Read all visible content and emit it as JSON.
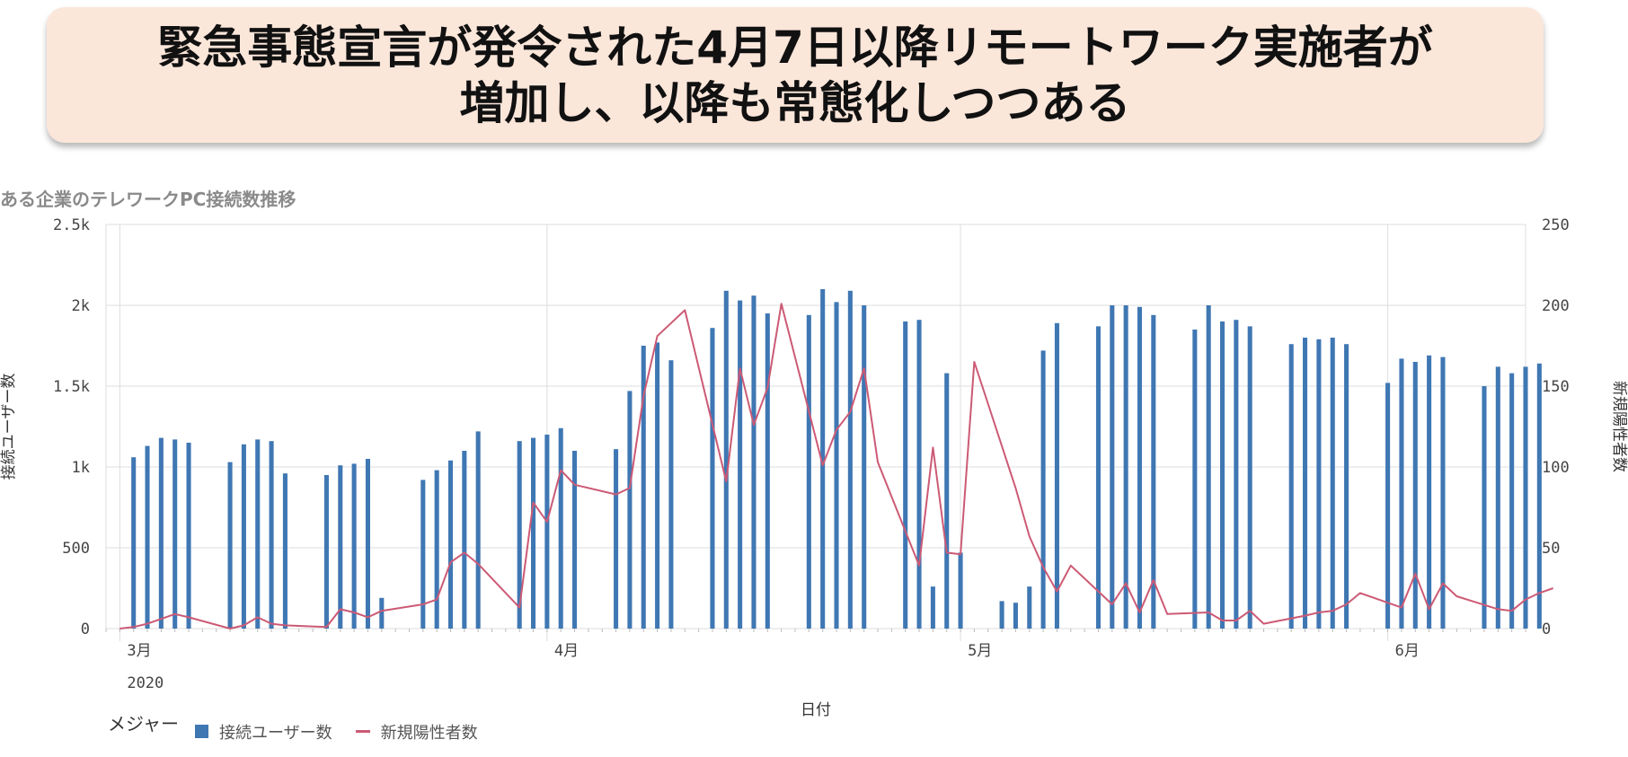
{
  "banner": {
    "line1": "緊急事態宣言が発令された4月7日以降リモートワーク実施者が",
    "line2": "増加し、以降も常態化しつつある"
  },
  "legend": {
    "title": "メジャー",
    "bar_label": "接続ユーザー数",
    "line_label": "新規陽性者数"
  },
  "colors": {
    "bar": "#3f77b3",
    "line": "#cc5a75",
    "grid": "#dddddd"
  },
  "chart_data": {
    "type": "bar+line",
    "title": "ある企業のテレワークPC接続数推移",
    "xlabel": "日付",
    "ylabel_left": "接続ユーザー数",
    "ylabel_right": "新規陽性者数",
    "ylim_left": [
      0,
      2500
    ],
    "ylim_right": [
      0,
      250
    ],
    "yticks_left": [
      "0",
      "500",
      "1k",
      "1.5k",
      "2k",
      "2.5k"
    ],
    "yticks_right": [
      "0",
      "50",
      "100",
      "150",
      "200",
      "250"
    ],
    "x_range": [
      "2020-02-29",
      "2020-06-11"
    ],
    "x_ticks": [
      {
        "date": "2020-03-01",
        "label": "3月",
        "sub": "2020"
      },
      {
        "date": "2020-04-01",
        "label": "4月",
        "sub": ""
      },
      {
        "date": "2020-05-01",
        "label": "5月",
        "sub": ""
      },
      {
        "date": "2020-06-01",
        "label": "6月",
        "sub": ""
      }
    ],
    "grid": true,
    "legend_position": "bottom-left",
    "series": [
      {
        "name": "接続ユーザー数",
        "type": "bar",
        "axis": "left",
        "points": [
          [
            "2020-03-02",
            1060
          ],
          [
            "2020-03-03",
            1130
          ],
          [
            "2020-03-04",
            1180
          ],
          [
            "2020-03-05",
            1170
          ],
          [
            "2020-03-06",
            1150
          ],
          [
            "2020-03-09",
            1030
          ],
          [
            "2020-03-10",
            1140
          ],
          [
            "2020-03-11",
            1170
          ],
          [
            "2020-03-12",
            1160
          ],
          [
            "2020-03-13",
            960
          ],
          [
            "2020-03-16",
            950
          ],
          [
            "2020-03-17",
            1010
          ],
          [
            "2020-03-18",
            1020
          ],
          [
            "2020-03-19",
            1050
          ],
          [
            "2020-03-20",
            190
          ],
          [
            "2020-03-23",
            920
          ],
          [
            "2020-03-24",
            980
          ],
          [
            "2020-03-25",
            1040
          ],
          [
            "2020-03-26",
            1100
          ],
          [
            "2020-03-27",
            1220
          ],
          [
            "2020-03-30",
            1160
          ],
          [
            "2020-03-31",
            1180
          ],
          [
            "2020-04-01",
            1200
          ],
          [
            "2020-04-02",
            1240
          ],
          [
            "2020-04-03",
            1100
          ],
          [
            "2020-04-06",
            1110
          ],
          [
            "2020-04-07",
            1470
          ],
          [
            "2020-04-08",
            1750
          ],
          [
            "2020-04-09",
            1770
          ],
          [
            "2020-04-10",
            1660
          ],
          [
            "2020-04-13",
            1860
          ],
          [
            "2020-04-14",
            2090
          ],
          [
            "2020-04-15",
            2030
          ],
          [
            "2020-04-16",
            2060
          ],
          [
            "2020-04-17",
            1950
          ],
          [
            "2020-04-20",
            1940
          ],
          [
            "2020-04-21",
            2100
          ],
          [
            "2020-04-22",
            2020
          ],
          [
            "2020-04-23",
            2090
          ],
          [
            "2020-04-24",
            2000
          ],
          [
            "2020-04-27",
            1900
          ],
          [
            "2020-04-28",
            1910
          ],
          [
            "2020-04-29",
            260
          ],
          [
            "2020-04-30",
            1580
          ],
          [
            "2020-05-01",
            470
          ],
          [
            "2020-05-04",
            170
          ],
          [
            "2020-05-05",
            160
          ],
          [
            "2020-05-06",
            260
          ],
          [
            "2020-05-07",
            1720
          ],
          [
            "2020-05-08",
            1890
          ],
          [
            "2020-05-11",
            1870
          ],
          [
            "2020-05-12",
            2000
          ],
          [
            "2020-05-13",
            2000
          ],
          [
            "2020-05-14",
            1990
          ],
          [
            "2020-05-15",
            1940
          ],
          [
            "2020-05-18",
            1850
          ],
          [
            "2020-05-19",
            2000
          ],
          [
            "2020-05-20",
            1900
          ],
          [
            "2020-05-21",
            1910
          ],
          [
            "2020-05-22",
            1870
          ],
          [
            "2020-05-25",
            1760
          ],
          [
            "2020-05-26",
            1800
          ],
          [
            "2020-05-27",
            1790
          ],
          [
            "2020-05-28",
            1800
          ],
          [
            "2020-05-29",
            1760
          ],
          [
            "2020-06-01",
            1520
          ],
          [
            "2020-06-02",
            1670
          ],
          [
            "2020-06-03",
            1650
          ],
          [
            "2020-06-04",
            1690
          ],
          [
            "2020-06-05",
            1680
          ],
          [
            "2020-06-08",
            1500
          ],
          [
            "2020-06-09",
            1620
          ],
          [
            "2020-06-10",
            1580
          ],
          [
            "2020-06-11",
            1620
          ],
          [
            "2020-06-12",
            1640
          ]
        ]
      },
      {
        "name": "新規陽性者数",
        "type": "line",
        "axis": "right",
        "points": [
          [
            "2020-03-01",
            0
          ],
          [
            "2020-03-02",
            1
          ],
          [
            "2020-03-03",
            3
          ],
          [
            "2020-03-04",
            6
          ],
          [
            "2020-03-05",
            9
          ],
          [
            "2020-03-06",
            7
          ],
          [
            "2020-03-09",
            0
          ],
          [
            "2020-03-10",
            2
          ],
          [
            "2020-03-11",
            7
          ],
          [
            "2020-03-12",
            3
          ],
          [
            "2020-03-13",
            2
          ],
          [
            "2020-03-16",
            1
          ],
          [
            "2020-03-17",
            12
          ],
          [
            "2020-03-18",
            10
          ],
          [
            "2020-03-19",
            7
          ],
          [
            "2020-03-20",
            11
          ],
          [
            "2020-03-23",
            15
          ],
          [
            "2020-03-24",
            18
          ],
          [
            "2020-03-25",
            41
          ],
          [
            "2020-03-26",
            47
          ],
          [
            "2020-03-27",
            40
          ],
          [
            "2020-03-30",
            13
          ],
          [
            "2020-03-31",
            78
          ],
          [
            "2020-04-01",
            66
          ],
          [
            "2020-04-02",
            98
          ],
          [
            "2020-04-03",
            89
          ],
          [
            "2020-04-06",
            83
          ],
          [
            "2020-04-07",
            87
          ],
          [
            "2020-04-08",
            144
          ],
          [
            "2020-04-09",
            181
          ],
          [
            "2020-04-10",
            189
          ],
          [
            "2020-04-11",
            197
          ],
          [
            "2020-04-14",
            91
          ],
          [
            "2020-04-15",
            161
          ],
          [
            "2020-04-16",
            126
          ],
          [
            "2020-04-17",
            149
          ],
          [
            "2020-04-18",
            201
          ],
          [
            "2020-04-21",
            101
          ],
          [
            "2020-04-22",
            123
          ],
          [
            "2020-04-23",
            134
          ],
          [
            "2020-04-24",
            161
          ],
          [
            "2020-04-25",
            103
          ],
          [
            "2020-04-28",
            39
          ],
          [
            "2020-04-29",
            112
          ],
          [
            "2020-04-30",
            47
          ],
          [
            "2020-05-01",
            46
          ],
          [
            "2020-05-02",
            165
          ],
          [
            "2020-05-05",
            87
          ],
          [
            "2020-05-06",
            57
          ],
          [
            "2020-05-07",
            38
          ],
          [
            "2020-05-08",
            23
          ],
          [
            "2020-05-09",
            39
          ],
          [
            "2020-05-12",
            15
          ],
          [
            "2020-05-13",
            28
          ],
          [
            "2020-05-14",
            10
          ],
          [
            "2020-05-15",
            30
          ],
          [
            "2020-05-16",
            9
          ],
          [
            "2020-05-19",
            10
          ],
          [
            "2020-05-20",
            5
          ],
          [
            "2020-05-21",
            5
          ],
          [
            "2020-05-22",
            11
          ],
          [
            "2020-05-23",
            3
          ],
          [
            "2020-05-26",
            8
          ],
          [
            "2020-05-27",
            10
          ],
          [
            "2020-05-28",
            11
          ],
          [
            "2020-05-29",
            15
          ],
          [
            "2020-05-30",
            22
          ],
          [
            "2020-06-02",
            13
          ],
          [
            "2020-06-03",
            34
          ],
          [
            "2020-06-04",
            12
          ],
          [
            "2020-06-05",
            28
          ],
          [
            "2020-06-06",
            20
          ],
          [
            "2020-06-09",
            12
          ],
          [
            "2020-06-10",
            11
          ],
          [
            "2020-06-11",
            18
          ],
          [
            "2020-06-12",
            22
          ],
          [
            "2020-06-13",
            25
          ]
        ]
      }
    ]
  }
}
